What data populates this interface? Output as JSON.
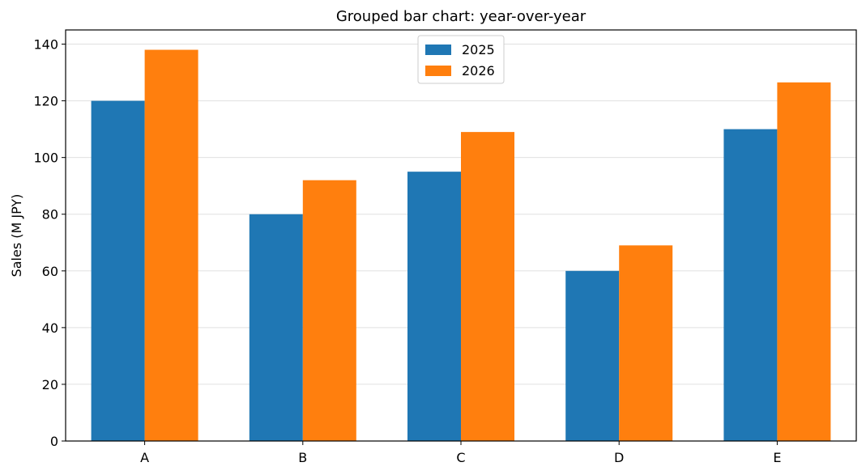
{
  "chart_data": {
    "type": "bar",
    "title": "Grouped bar chart: year-over-year",
    "xlabel": "",
    "ylabel": "Sales (M JPY)",
    "categories": [
      "A",
      "B",
      "C",
      "D",
      "E"
    ],
    "series": [
      {
        "name": "2025",
        "values": [
          120,
          80,
          95,
          60,
          110
        ],
        "color": "#1f77b4"
      },
      {
        "name": "2026",
        "values": [
          138,
          92,
          109,
          69,
          126.5
        ],
        "color": "#ff7f0e"
      }
    ],
    "ylim": [
      0,
      145
    ],
    "yticks": [
      0,
      20,
      40,
      60,
      80,
      100,
      120,
      140
    ],
    "grid": "y",
    "legend": "top-center"
  }
}
